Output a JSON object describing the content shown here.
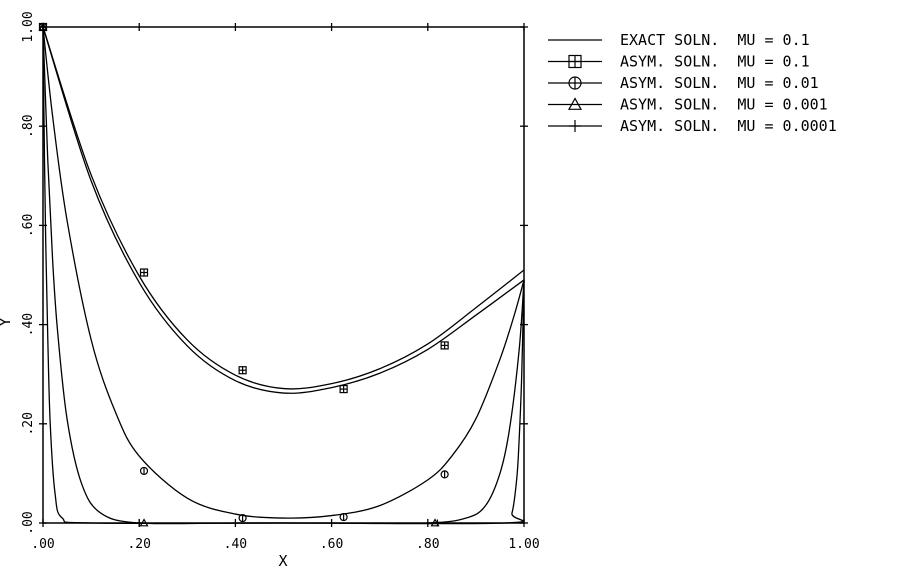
{
  "chart_data": {
    "type": "line",
    "title": "",
    "xlabel": "X",
    "ylabel": "Y",
    "xlim": [
      0,
      1
    ],
    "ylim": [
      0,
      1
    ],
    "x_ticks": [
      ".00",
      ".20",
      ".40",
      ".60",
      ".80",
      "1.00"
    ],
    "y_ticks": [
      ".00",
      ".20",
      ".40",
      ".60",
      ".80",
      "1.00"
    ],
    "grid": false,
    "legend_position": "right",
    "series": [
      {
        "name": "EXACT SOLN.  MU = 0.1",
        "marker": "none",
        "x": [
          0.0,
          0.1,
          0.2,
          0.3,
          0.4,
          0.5,
          0.6,
          0.7,
          0.8,
          0.9,
          1.0
        ],
        "y": [
          1.0,
          0.702,
          0.498,
          0.369,
          0.298,
          0.271,
          0.281,
          0.311,
          0.361,
          0.434,
          0.51
        ]
      },
      {
        "name": "ASYM. SOLN.  MU = 0.1",
        "marker": "square",
        "x": [
          0.0,
          0.1,
          0.2,
          0.3,
          0.4,
          0.5,
          0.6,
          0.7,
          0.8,
          0.9,
          1.0
        ],
        "y": [
          1.0,
          0.69,
          0.485,
          0.357,
          0.287,
          0.262,
          0.273,
          0.302,
          0.35,
          0.419,
          0.49
        ],
        "markers_x": [
          0.21,
          0.415,
          0.625,
          0.835
        ],
        "markers_y": [
          0.505,
          0.308,
          0.27,
          0.358
        ]
      },
      {
        "name": "ASYM. SOLN.  MU = 0.01",
        "marker": "circle",
        "x": [
          0.0,
          0.02,
          0.05,
          0.1,
          0.15,
          0.2,
          0.3,
          0.4,
          0.5,
          0.6,
          0.7,
          0.8,
          0.85,
          0.9,
          0.95,
          0.98,
          1.0
        ],
        "y": [
          1.0,
          0.82,
          0.61,
          0.37,
          0.225,
          0.135,
          0.05,
          0.018,
          0.01,
          0.015,
          0.035,
          0.087,
          0.135,
          0.21,
          0.33,
          0.42,
          0.49
        ],
        "markers_x": [
          0.21,
          0.415,
          0.625,
          0.835
        ],
        "markers_y": [
          0.105,
          0.01,
          0.012,
          0.098
        ]
      },
      {
        "name": "ASYM. SOLN.  MU = 0.001",
        "marker": "triangle",
        "x": [
          0.0,
          0.01,
          0.02,
          0.03,
          0.05,
          0.08,
          0.12,
          0.2,
          0.4,
          0.6,
          0.8,
          0.88,
          0.92,
          0.95,
          0.97,
          0.99,
          1.0
        ],
        "y": [
          1.0,
          0.73,
          0.53,
          0.39,
          0.21,
          0.08,
          0.02,
          0.0,
          0.0,
          0.0,
          0.0,
          0.01,
          0.035,
          0.1,
          0.19,
          0.35,
          0.49
        ],
        "markers_x": [
          0.21,
          0.815
        ],
        "markers_y": [
          0.0,
          0.0
        ]
      },
      {
        "name": "ASYM. SOLN.  MU = 0.0001",
        "marker": "plus",
        "x": [
          0.0,
          0.003,
          0.006,
          0.01,
          0.015,
          0.025,
          0.04,
          0.1,
          0.5,
          0.96,
          0.975,
          0.985,
          0.99,
          0.995,
          1.0
        ],
        "y": [
          1.0,
          0.74,
          0.55,
          0.37,
          0.2,
          0.06,
          0.01,
          0.0,
          0.0,
          0.0,
          0.02,
          0.09,
          0.17,
          0.29,
          0.49
        ],
        "markers_x": [
          0.2,
          0.82
        ],
        "markers_y": [
          0.0,
          0.0
        ]
      }
    ]
  }
}
